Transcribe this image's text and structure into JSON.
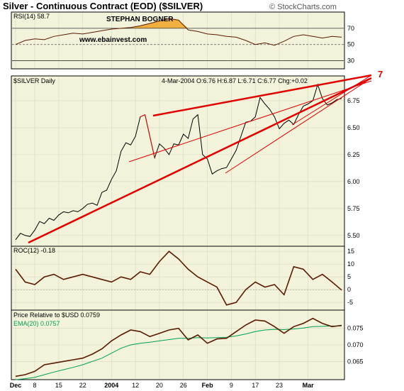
{
  "header": {
    "title": "Silver - Continuous Contract (EOD) ($SILVER)",
    "copyright": "© StockCharts.com"
  },
  "annotations": {
    "author": "STEPHAN BOGNER",
    "website": "www.ebainvest.com",
    "callout_number": "7"
  },
  "colors": {
    "panel_bg": "#f3f3dc",
    "price_line": "#000000",
    "trendline": "#e00000",
    "indicator_line": "#5a1a00",
    "ema_line": "#00a050",
    "rsi_fill": "#f0b040"
  },
  "chart_data": [
    {
      "id": "rsi",
      "type": "line",
      "title": "RSI(14) 58.7",
      "ylim": [
        20,
        90
      ],
      "yticks": [
        "70",
        "50",
        "30"
      ],
      "reference_lines": [
        70,
        50,
        30
      ],
      "x": [
        0,
        2,
        4,
        6,
        8,
        10,
        12,
        14,
        16,
        18,
        20,
        22,
        24,
        26,
        28,
        30,
        32,
        34,
        36,
        38,
        40,
        42,
        44,
        46,
        48,
        50,
        52,
        54,
        56,
        58,
        60,
        62,
        64,
        66,
        68
      ],
      "values": [
        50,
        55,
        57,
        56,
        60,
        62,
        64,
        63,
        65,
        67,
        69,
        70,
        71,
        73,
        76,
        79,
        82,
        80,
        68,
        66,
        63,
        62,
        60,
        59,
        55,
        50,
        52,
        49,
        54,
        60,
        62,
        60,
        58,
        60,
        59
      ]
    },
    {
      "id": "price",
      "type": "line",
      "title": "$SILVER Daily",
      "ohlc_text": "4-Mar-2004 O:6.76 H:6.87 L:6.71 C:6.77 Chg:+0.02",
      "ylim": [
        5.4,
        6.98
      ],
      "yticks": [
        "6.75",
        "6.50",
        "6.25",
        "6.00",
        "5.75",
        "5.50"
      ],
      "x": [
        0,
        1,
        2,
        3,
        4,
        5,
        6,
        7,
        8,
        9,
        10,
        11,
        12,
        13,
        14,
        15,
        16,
        17,
        18,
        19,
        20,
        21,
        22,
        23,
        24,
        25,
        26,
        27,
        28,
        29,
        30,
        31,
        32,
        33,
        34,
        35,
        36,
        37,
        38,
        39,
        40,
        41,
        42,
        43,
        44,
        45,
        46,
        47,
        48,
        49,
        50,
        51,
        52,
        53,
        54,
        55,
        56,
        57,
        58,
        59,
        60,
        61,
        62,
        63,
        64,
        65,
        66,
        67,
        68
      ],
      "values": [
        5.46,
        5.52,
        5.5,
        5.49,
        5.55,
        5.63,
        5.61,
        5.66,
        5.64,
        5.69,
        5.72,
        5.71,
        5.73,
        5.72,
        5.75,
        5.79,
        5.8,
        5.78,
        5.9,
        5.92,
        6.02,
        6.1,
        6.28,
        6.36,
        6.34,
        6.42,
        6.6,
        6.62,
        6.42,
        6.22,
        6.35,
        6.31,
        6.25,
        6.35,
        6.34,
        6.44,
        6.4,
        6.58,
        6.62,
        6.25,
        6.21,
        6.07,
        6.1,
        6.12,
        6.13,
        6.21,
        6.29,
        6.42,
        6.55,
        6.56,
        6.6,
        6.78,
        6.72,
        6.67,
        6.6,
        6.49,
        6.54,
        6.57,
        6.53,
        6.62,
        6.7,
        6.72,
        6.75,
        6.9,
        6.77,
        6.71,
        6.73,
        6.76,
        6.77
      ]
    },
    {
      "id": "roc",
      "type": "line",
      "title": "ROC(12) -0.18",
      "ylim": [
        -8,
        17
      ],
      "yticks": [
        "15",
        "10",
        "5",
        "0",
        "-5"
      ],
      "x": [
        0,
        2,
        4,
        6,
        8,
        10,
        12,
        14,
        16,
        18,
        20,
        22,
        24,
        26,
        28,
        30,
        32,
        34,
        36,
        38,
        40,
        42,
        44,
        46,
        48,
        50,
        52,
        54,
        56,
        58,
        60,
        62,
        64,
        66,
        68
      ],
      "values": [
        8,
        3,
        2,
        5,
        6,
        4,
        5,
        6,
        5,
        4,
        3,
        5,
        4,
        7,
        6,
        11,
        15,
        12,
        8,
        5,
        3,
        1,
        -6,
        -5,
        0,
        3,
        1,
        2,
        -2,
        9,
        8,
        4,
        6,
        3,
        -0.18
      ]
    },
    {
      "id": "relative",
      "type": "line",
      "title": "Price Relative to $USD 0.0759",
      "legend": "EMA(20) 0.0757",
      "ylim": [
        0.0595,
        0.0805
      ],
      "yticks": [
        "0.075",
        "0.070",
        "0.065"
      ],
      "x_labels": [
        "Dec",
        "8",
        "15",
        "22",
        "2004",
        "12",
        "20",
        "26",
        "Feb",
        "9",
        "17",
        "23",
        "Mar"
      ],
      "x_label_positions": [
        0,
        4,
        9,
        14,
        20,
        25,
        30,
        35,
        40,
        45,
        50,
        55,
        61
      ],
      "x": [
        0,
        2,
        4,
        6,
        8,
        10,
        12,
        14,
        16,
        18,
        20,
        22,
        24,
        26,
        28,
        30,
        32,
        34,
        36,
        38,
        40,
        42,
        44,
        46,
        48,
        50,
        52,
        54,
        56,
        58,
        60,
        62,
        64,
        66,
        68
      ],
      "series": [
        {
          "name": "Price Relative to $USD",
          "values": [
            0.0605,
            0.061,
            0.062,
            0.064,
            0.0645,
            0.065,
            0.0655,
            0.066,
            0.0672,
            0.0688,
            0.0712,
            0.073,
            0.0745,
            0.074,
            0.0725,
            0.0735,
            0.0745,
            0.075,
            0.0715,
            0.073,
            0.0705,
            0.0718,
            0.072,
            0.074,
            0.076,
            0.0775,
            0.0772,
            0.0755,
            0.0735,
            0.0755,
            0.0765,
            0.078,
            0.0765,
            0.0755,
            0.0759
          ]
        },
        {
          "name": "EMA(20)",
          "values": [
            0.0595,
            0.0598,
            0.0602,
            0.061,
            0.0618,
            0.0625,
            0.0632,
            0.064,
            0.065,
            0.066,
            0.0675,
            0.069,
            0.07,
            0.0705,
            0.0708,
            0.0712,
            0.0716,
            0.072,
            0.072,
            0.0722,
            0.0721,
            0.0722,
            0.0723,
            0.0727,
            0.0733,
            0.074,
            0.0745,
            0.0747,
            0.0746,
            0.0748,
            0.0751,
            0.0755,
            0.0756,
            0.0757,
            0.0757
          ]
        }
      ]
    }
  ]
}
